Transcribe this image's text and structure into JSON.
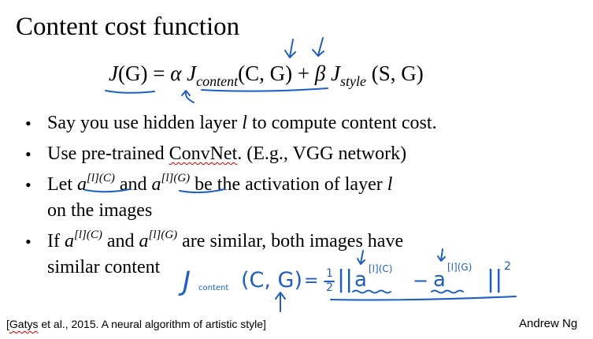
{
  "slide": {
    "title": "Content cost function",
    "formula": {
      "J": "J",
      "G_arg": "(G)",
      "equals": " = ",
      "alpha": "α",
      "J2": "J",
      "content_sub": "content",
      "content_args": "(C, G)",
      "plus": " + ",
      "beta": "β",
      "J3": "J",
      "style_sub": "style",
      "style_args": " (S, G)"
    },
    "bullets": [
      {
        "pre": "Say you use hidden layer ",
        "var": "l",
        "post": " to compute content cost."
      },
      {
        "pre": "Use pre-trained ",
        "wavy": "ConvNet",
        "post": ". (E.g., VGG network)"
      },
      {
        "pre": "Let ",
        "a1": "a",
        "sup1": "[l](C)",
        "mid": " and ",
        "a2": "a",
        "sup2": "[l](G)",
        "post": " be the activation of layer ",
        "var": "l",
        "line2": "on the images"
      },
      {
        "pre": "If ",
        "a1": "a",
        "sup1": "[l](C)",
        "mid": " and ",
        "a2": "a",
        "sup2": "[l](G)",
        "post": " are similar, both images have",
        "line2": "similar content"
      }
    ],
    "citation_open": "[",
    "citation_wavy": "Gatys",
    "citation_rest": " et al., 2015. A neural algorithm of artistic style]",
    "author": "Andrew Ng"
  },
  "handwriting": {
    "color": "#1f5ebf",
    "j_content": "J",
    "content_word": "content",
    "args": "(C, G)",
    "equals": "=",
    "half_num": "1",
    "half_den": "2",
    "norm_open": "||",
    "a1": "a",
    "sup1": "[l](C)",
    "minus": "−",
    "a2": "a",
    "sup2": "[l](G)",
    "norm_close": "||",
    "square": "2"
  }
}
